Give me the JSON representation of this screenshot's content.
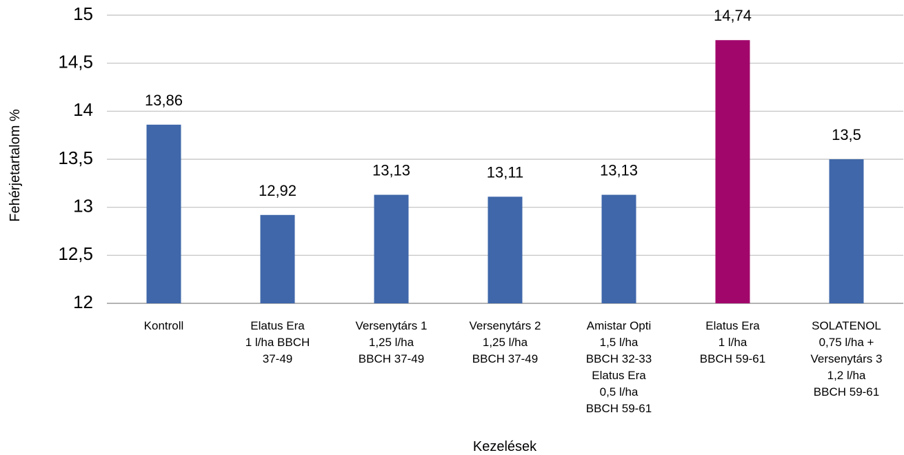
{
  "chart_data": {
    "type": "bar",
    "title": "",
    "xlabel": "Kezelések",
    "ylabel": "Fehérjetartalom %",
    "ylim": [
      12,
      15
    ],
    "yticks": [
      "12",
      "12,5",
      "13",
      "13,5",
      "14",
      "14,5",
      "15"
    ],
    "ytick_values": [
      12,
      12.5,
      13,
      13.5,
      14,
      14.5,
      15
    ],
    "grid": true,
    "legend": "none",
    "categories": [
      [
        "Kontroll"
      ],
      [
        "Elatus Era",
        "1 l/ha BBCH",
        "37-49"
      ],
      [
        "Versenytárs 1",
        "1,25 l/ha",
        "BBCH 37-49"
      ],
      [
        "Versenytárs 2",
        "1,25 l/ha",
        "BBCH 37-49"
      ],
      [
        "Amistar Opti",
        "1,5 l/ha",
        "BBCH 32-33",
        "Elatus Era",
        "0,5 l/ha",
        "BBCH 59-61"
      ],
      [
        "Elatus Era",
        "1 l/ha",
        "BBCH 59-61"
      ],
      [
        "SOLATENOL",
        "0,75 l/ha +",
        "Versenytárs 3",
        "1,2 l/ha",
        "BBCH 59-61"
      ]
    ],
    "values": [
      13.86,
      12.92,
      13.13,
      13.11,
      13.13,
      14.74,
      13.5
    ],
    "data_labels": [
      "13,86",
      "12,92",
      "13,13",
      "13,11",
      "13,13",
      "14,74",
      "13,5"
    ],
    "colors": [
      "#3f67aa",
      "#3f67aa",
      "#3f67aa",
      "#3f67aa",
      "#3f67aa",
      "#a1076b",
      "#3f67aa"
    ]
  }
}
